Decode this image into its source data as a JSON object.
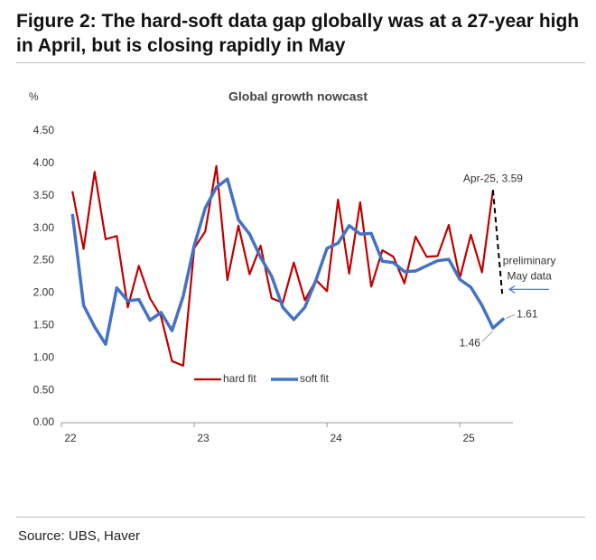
{
  "chart_data": {
    "type": "line",
    "title": "Figure 2: The hard-soft data gap globally was at a 27-year high in April, but is closing rapidly in May",
    "subtitle": "Global growth nowcast",
    "y_label": "%",
    "source": "Source: UBS, Haver",
    "x": [
      22.083,
      22.167,
      22.25,
      22.333,
      22.417,
      22.5,
      22.583,
      22.667,
      22.75,
      22.833,
      22.917,
      23.0,
      23.083,
      23.167,
      23.25,
      23.333,
      23.417,
      23.5,
      23.583,
      23.667,
      23.75,
      23.833,
      23.917,
      24.0,
      24.083,
      24.167,
      24.25,
      24.333,
      24.417,
      24.5,
      24.583,
      24.667,
      24.75,
      24.833,
      24.917,
      25.0,
      25.083,
      25.167,
      25.25,
      25.333
    ],
    "series": [
      {
        "name": "hard fit",
        "color": "#c00000",
        "values": [
          3.57,
          2.68,
          3.87,
          2.83,
          2.88,
          1.78,
          2.42,
          1.92,
          1.64,
          0.95,
          0.88,
          2.69,
          2.95,
          3.96,
          2.2,
          3.04,
          2.29,
          2.73,
          1.92,
          1.85,
          2.47,
          1.89,
          2.2,
          2.03,
          3.44,
          2.3,
          3.4,
          2.1,
          2.66,
          2.56,
          2.15,
          2.87,
          2.56,
          2.57,
          3.05,
          2.23,
          2.9,
          2.32,
          3.59,
          null
        ]
      },
      {
        "name": "soft fit",
        "color": "#4472c4",
        "values": [
          3.22,
          1.81,
          1.48,
          1.21,
          2.08,
          1.88,
          1.9,
          1.58,
          1.7,
          1.42,
          1.95,
          2.73,
          3.31,
          3.63,
          3.76,
          3.13,
          2.91,
          2.55,
          2.26,
          1.78,
          1.59,
          1.78,
          2.2,
          2.69,
          2.77,
          3.04,
          2.91,
          2.92,
          2.49,
          2.47,
          2.33,
          2.34,
          2.42,
          2.5,
          2.52,
          2.21,
          2.09,
          1.81,
          1.46,
          1.61
        ]
      }
    ],
    "xlim": [
      22.0,
      25.4
    ],
    "xticks": [
      22,
      23,
      24,
      25
    ],
    "ylim": [
      0,
      4.5
    ],
    "yticks": [
      {
        "value": 0,
        "label": "0.00"
      },
      {
        "value": 0.5,
        "label": "0.50"
      },
      {
        "value": 1,
        "label": "1.00"
      },
      {
        "value": 1.5,
        "label": "1.50"
      },
      {
        "value": 2,
        "label": "2.00"
      },
      {
        "value": 2.5,
        "label": "2.50"
      },
      {
        "value": 3,
        "label": "3.00"
      },
      {
        "value": 3.5,
        "label": "3.50"
      },
      {
        "value": 4,
        "label": "4.00"
      },
      {
        "value": 4.5,
        "label": "4.50"
      }
    ],
    "annotations": [
      "Apr-25, 3.59",
      "1.46",
      "1.61",
      "preliminary",
      "May data"
    ]
  }
}
